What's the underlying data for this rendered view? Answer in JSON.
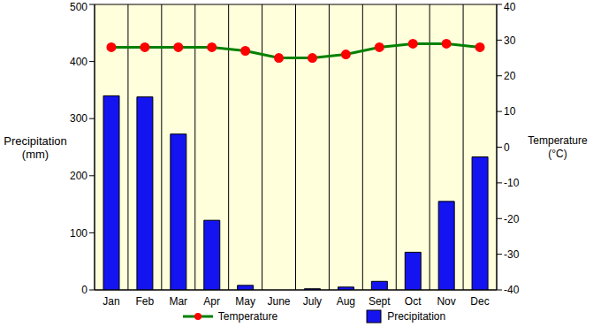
{
  "chart_data": {
    "type": "bar",
    "categories": [
      "Jan",
      "Feb",
      "Mar",
      "Apr",
      "May",
      "June",
      "July",
      "Aug",
      "Sept",
      "Oct",
      "Nov",
      "Dec"
    ],
    "series": [
      {
        "name": "Temperature",
        "type": "line",
        "color": "#008000",
        "marker": "circle",
        "axis": "y2",
        "values": [
          28,
          28,
          28,
          28,
          27,
          25,
          25,
          26,
          28,
          29,
          29,
          28
        ]
      },
      {
        "name": "Precipitation",
        "type": "bar",
        "color": "#1414f0",
        "values": [
          340,
          338,
          273,
          122,
          8,
          0,
          2,
          5,
          15,
          66,
          155,
          233
        ]
      }
    ],
    "ylabel": "Precipitation (mm)",
    "y2label": "Temperature (°C)",
    "ylim": [
      0,
      500
    ],
    "yticks": [
      0,
      100,
      200,
      300,
      400,
      500
    ],
    "y2lim": [
      -40,
      40
    ],
    "y2ticks": [
      -40,
      -30,
      -20,
      -10,
      0,
      10,
      20,
      30,
      40
    ],
    "grid": true,
    "legend": "bottom"
  }
}
